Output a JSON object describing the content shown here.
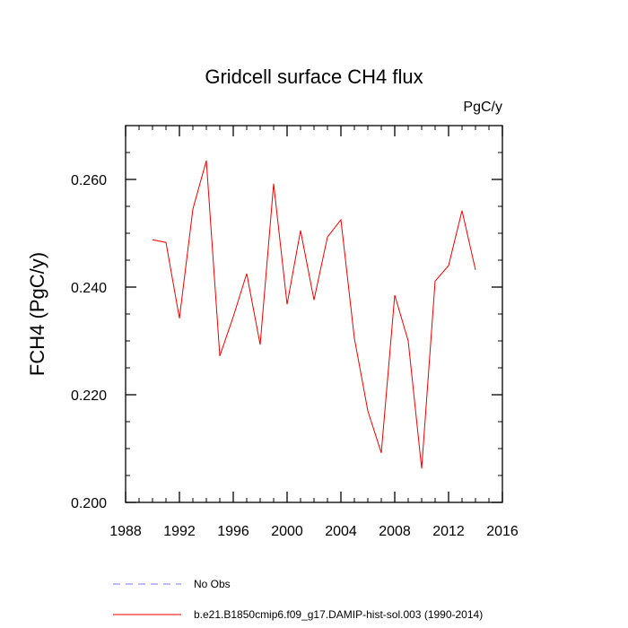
{
  "chart_data": {
    "type": "line",
    "title": "Gridcell surface CH4 flux",
    "units": "PgC/y",
    "xlabel": "",
    "ylabel": "FCH4  (PgC/y)",
    "xlim": [
      1988,
      2016
    ],
    "ylim": [
      0.2,
      0.27
    ],
    "xticks": [
      {
        "value": 1988,
        "label": "1988"
      },
      {
        "value": 1992,
        "label": "1992"
      },
      {
        "value": 1996,
        "label": "1996"
      },
      {
        "value": 2000,
        "label": "2000"
      },
      {
        "value": 2004,
        "label": "2004"
      },
      {
        "value": 2008,
        "label": "2008"
      },
      {
        "value": 2012,
        "label": "2012"
      },
      {
        "value": 2016,
        "label": "2016"
      }
    ],
    "yticks": [
      {
        "value": 0.2,
        "label": "0.200"
      },
      {
        "value": 0.22,
        "label": "0.220"
      },
      {
        "value": 0.24,
        "label": "0.240"
      },
      {
        "value": 0.26,
        "label": "0.260"
      }
    ],
    "x_minor_step": 1,
    "y_minor_step": 0.005,
    "grid": false,
    "legend_position": "bottom",
    "series": [
      {
        "name": "No Obs",
        "color": "#7777ee",
        "dash": true,
        "x": [],
        "y": []
      },
      {
        "name": "b.e21.B1850cmip6.f09_g17.DAMIP-hist-sol.003 (1990-2014)",
        "color": "#ee0000",
        "dash": false,
        "x": [
          1990,
          1991,
          1992,
          1993,
          1994,
          1995,
          1996,
          1997,
          1998,
          1999,
          2000,
          2001,
          2002,
          2003,
          2004,
          2005,
          2006,
          2007,
          2008,
          2009,
          2010,
          2011,
          2012,
          2013,
          2014
        ],
        "y": [
          0.2488,
          0.2483,
          0.2342,
          0.2545,
          0.2635,
          0.2272,
          0.2345,
          0.2425,
          0.2293,
          0.2592,
          0.2368,
          0.2505,
          0.2376,
          0.2493,
          0.2525,
          0.2305,
          0.217,
          0.2092,
          0.2385,
          0.23,
          0.2063,
          0.2411,
          0.244,
          0.2542,
          0.2432
        ]
      }
    ]
  }
}
